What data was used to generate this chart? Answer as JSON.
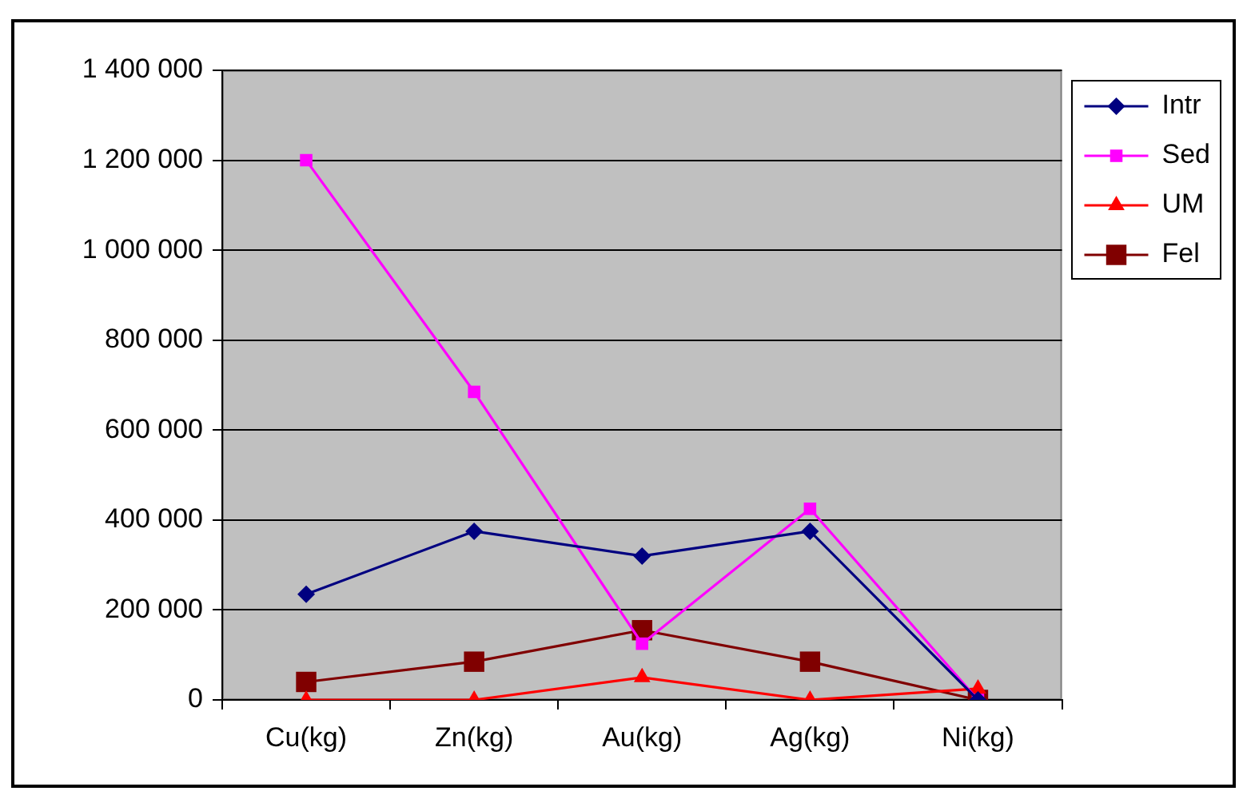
{
  "chart_data": {
    "type": "line",
    "categories": [
      "Cu(kg)",
      "Zn(kg)",
      "Au(kg)",
      "Ag(kg)",
      "Ni(kg)"
    ],
    "series": [
      {
        "name": "Intr",
        "color": "#000080",
        "marker": "diamond",
        "values": [
          235000,
          375000,
          320000,
          375000,
          0
        ]
      },
      {
        "name": "Sed",
        "color": "#ff00ff",
        "marker": "square",
        "values": [
          1200000,
          685000,
          125000,
          425000,
          0
        ]
      },
      {
        "name": "UM",
        "color": "#ff0000",
        "marker": "triangle",
        "values": [
          0,
          0,
          50000,
          0,
          25000
        ]
      },
      {
        "name": "Fel",
        "color": "#800000",
        "marker": "square",
        "values": [
          40000,
          85000,
          155000,
          85000,
          0
        ]
      }
    ],
    "ylim": [
      0,
      1400000
    ],
    "yticks": [
      0,
      {
        "value": 200000,
        "label": "200 000"
      },
      {
        "value": 400000,
        "label": "400 000"
      },
      {
        "value": 600000,
        "label": "600 000"
      },
      {
        "value": 800000,
        "label": "800 000"
      },
      {
        "value": 1000000,
        "label": "1 000 000"
      },
      {
        "value": 1200000,
        "label": "1 200 000"
      },
      {
        "value": 1400000,
        "label": "1 400 000"
      }
    ],
    "grid": "y",
    "legend": "top right"
  }
}
